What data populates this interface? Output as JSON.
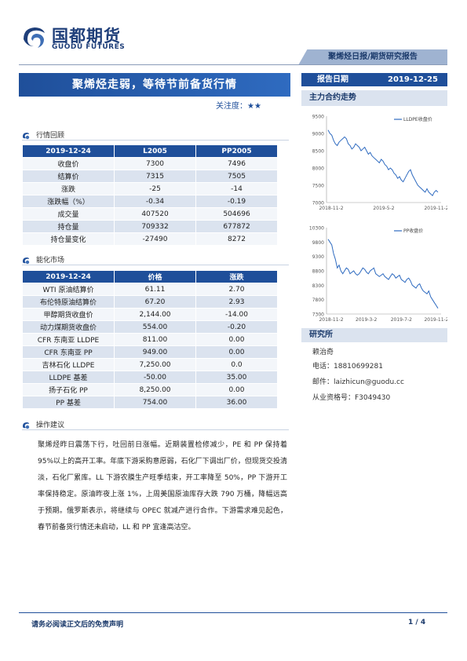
{
  "header": {
    "logo_cn": "国都期货",
    "logo_en": "GUODU FUTURES",
    "report_type": "聚烯烃日报/期货研究报告"
  },
  "report": {
    "title": "聚烯烃走弱，等待节前备货行情",
    "attention": "关注度：★★",
    "date_label": "报告日期",
    "date_value": "2019-12-25"
  },
  "market_review": {
    "heading": "行情回顾",
    "columns": [
      "2019-12-24",
      "L2005",
      "PP2005"
    ],
    "rows": [
      [
        "收盘价",
        "7300",
        "7496"
      ],
      [
        "结算价",
        "7315",
        "7505"
      ],
      [
        "涨跌",
        "-25",
        "-14"
      ],
      [
        "涨跌幅（%）",
        "-0.34",
        "-0.19"
      ],
      [
        "成交量",
        "407520",
        "504696"
      ],
      [
        "持仓量",
        "709332",
        "677872"
      ],
      [
        "持仓量变化",
        "-27490",
        "8272"
      ]
    ]
  },
  "chemical_market": {
    "heading": "能化市场",
    "columns": [
      "2019-12-24",
      "价格",
      "涨跌"
    ],
    "rows": [
      [
        "WTI 原油结算价",
        "61.11",
        "2.70"
      ],
      [
        "布伦特原油结算价",
        "67.20",
        "2.93"
      ],
      [
        "甲醇期货收盘价",
        "2,144.00",
        "-14.00"
      ],
      [
        "动力煤期货收盘价",
        "554.00",
        "-0.20"
      ],
      [
        "CFR 东南亚 LLDPE",
        "811.00",
        "0.00"
      ],
      [
        "CFR 东南亚 PP",
        "949.00",
        "0.00"
      ],
      [
        "吉林石化 LLDPE",
        "7,250.00",
        "0.0"
      ],
      [
        "LLDPE 基差",
        "-50.00",
        "35.00"
      ],
      [
        "扬子石化 PP",
        "8,250.00",
        "0.00"
      ],
      [
        "PP 基差",
        "754.00",
        "36.00"
      ]
    ]
  },
  "advice": {
    "heading": "操作建议",
    "text": "聚烯烃昨日震荡下行，吐回前日涨幅。近期装置检修减少，PE 和 PP 保持着 95%以上的高开工率。年底下游采购意愿弱，石化厂下调出厂价，但现货交投清淡，石化厂累库。LL 下游农膜生产旺季结束，开工率降至 50%，PP 下游开工率保持稳定。原油昨夜上涨 1%，上周美国原油库存大跌 790 万桶，降幅远高于预期。俄罗斯表示，将继续与 OPEC 就减产进行合作。下游需求难见起色，春节前备货行情还未启动，LL 和 PP 宜逢高沽空。"
  },
  "right_panel": {
    "chart_section": "主力合约走势",
    "research_section": "研究所",
    "researcher_name": "赖治奇",
    "phone": "电话：18810699281",
    "email": "邮件：laizhicun@guodu.cc",
    "license": "从业资格号：F3049430"
  },
  "chart_data": [
    {
      "type": "line",
      "legend": "LLDPE收盘价",
      "yticks": [
        "9500",
        "9000",
        "8500",
        "8000",
        "7500",
        "7000"
      ],
      "xticks": [
        "2018-11-2",
        "2019-5-2",
        "2019-11-2"
      ],
      "ylim": [
        7000,
        9500
      ],
      "values": [
        9100,
        9000,
        8950,
        8800,
        8700,
        8650,
        8750,
        8800,
        8850,
        8900,
        8850,
        8700,
        8650,
        8550,
        8600,
        8700,
        8650,
        8600,
        8500,
        8550,
        8600,
        8500,
        8400,
        8450,
        8350,
        8300,
        8250,
        8200,
        8150,
        8250,
        8200,
        8100,
        8050,
        7950,
        8000,
        7950,
        7850,
        7800,
        7700,
        7750,
        7650,
        7600,
        7700,
        7800,
        7900,
        7950,
        7800,
        7700,
        7600,
        7500,
        7450,
        7400,
        7350,
        7300,
        7400,
        7300,
        7250,
        7200,
        7300,
        7350,
        7300
      ]
    },
    {
      "type": "line",
      "legend": "PP收盘价",
      "yticks": [
        "10300",
        "9800",
        "9300",
        "8800",
        "8300",
        "7800",
        "7300"
      ],
      "xticks": [
        "2018-11-2",
        "2019-3-2",
        "2019-7-2",
        "2019-11-2"
      ],
      "ylim": [
        7300,
        10300
      ],
      "values": [
        9900,
        9800,
        9700,
        9400,
        9200,
        8900,
        9000,
        8800,
        8700,
        8800,
        8900,
        8850,
        8700,
        8750,
        8800,
        8700,
        8650,
        8700,
        8800,
        8900,
        8850,
        8750,
        8700,
        8800,
        8850,
        8900,
        8700,
        8650,
        8600,
        8650,
        8700,
        8600,
        8550,
        8500,
        8600,
        8700,
        8650,
        8550,
        8600,
        8650,
        8500,
        8450,
        8400,
        8500,
        8550,
        8450,
        8300,
        8250,
        8200,
        8300,
        8350,
        8200,
        8100,
        8050,
        8000,
        8100,
        7900,
        7800,
        7700,
        7600,
        7500
      ]
    }
  ]
}
